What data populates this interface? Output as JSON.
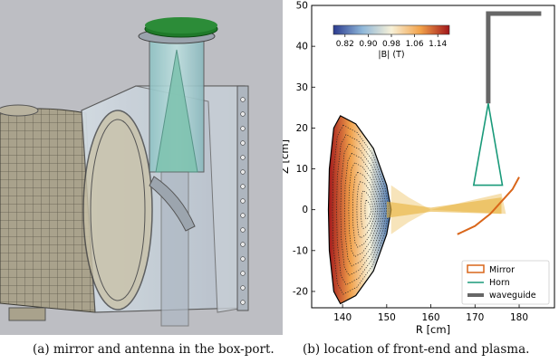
{
  "figure": {
    "caption_a": "(a) mirror and antenna in the box-port.",
    "caption_b": "(b) location of front-end and plasma."
  },
  "colors": {
    "render_bg": "#bdbec3",
    "flange_green": "#1f7a2a",
    "horn": "#1a9a7a",
    "mirror": "#d9661a",
    "waveguide": "#666666",
    "beam": "#e8b23a"
  },
  "chart_data": {
    "type": "plot",
    "xlabel": "R [cm]",
    "ylabel": "Z [cm]",
    "xlim": [
      133,
      188
    ],
    "ylim": [
      -24,
      50
    ],
    "xticks": [
      140,
      150,
      160,
      170,
      180
    ],
    "yticks": [
      -20,
      -10,
      0,
      10,
      20,
      30,
      40,
      50
    ],
    "colorbar": {
      "label": "|B| (T)",
      "ticks": [
        "0.82",
        "0.90",
        "0.98",
        "1.06",
        "1.14"
      ],
      "range": [
        0.78,
        1.18
      ]
    },
    "legend": {
      "position": "bottom-right",
      "entries": [
        {
          "label": "Mirror",
          "style": "box",
          "color": "#d9661a"
        },
        {
          "label": "Horn",
          "style": "line",
          "color": "#1a9a7a"
        },
        {
          "label": "waveguide",
          "style": "thick-line",
          "color": "#666666"
        }
      ]
    },
    "waveguide": [
      [
        185,
        48
      ],
      [
        173,
        48
      ],
      [
        173,
        26
      ]
    ],
    "horn": [
      [
        173,
        26
      ],
      [
        169.7,
        6
      ],
      [
        176.2,
        6
      ],
      [
        173,
        26
      ]
    ],
    "mirror": [
      [
        166,
        -6
      ],
      [
        170,
        -4
      ],
      [
        173.5,
        -1
      ],
      [
        176,
        2
      ],
      [
        178.5,
        5
      ],
      [
        180,
        8
      ]
    ],
    "plasma_outline": [
      [
        139.5,
        23
      ],
      [
        138,
        20
      ],
      [
        137,
        10
      ],
      [
        136.8,
        0
      ],
      [
        137,
        -10
      ],
      [
        138,
        -20
      ],
      [
        139.5,
        -23
      ],
      [
        143,
        -21
      ],
      [
        147,
        -15
      ],
      [
        150,
        -6
      ],
      [
        151,
        0
      ],
      [
        150,
        6
      ],
      [
        147,
        15
      ],
      [
        143,
        21
      ]
    ],
    "beam_center": [
      [
        150,
        0
      ],
      [
        160,
        0
      ],
      [
        175,
        1
      ]
    ]
  }
}
